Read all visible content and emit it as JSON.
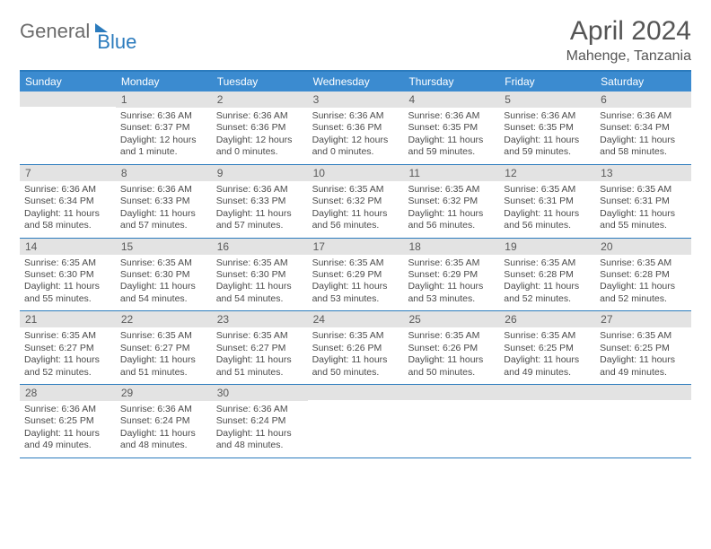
{
  "brand": {
    "general": "General",
    "blue": "Blue"
  },
  "title": "April 2024",
  "location": "Mahenge, Tanzania",
  "colors": {
    "header_bg": "#3b8bd0",
    "border": "#2b7bbd",
    "daynum_bg": "#e3e3e3",
    "text": "#4a4a4a",
    "title_text": "#555555"
  },
  "dow": [
    "Sunday",
    "Monday",
    "Tuesday",
    "Wednesday",
    "Thursday",
    "Friday",
    "Saturday"
  ],
  "weeks": [
    [
      {
        "n": "",
        "lines": []
      },
      {
        "n": "1",
        "lines": [
          "Sunrise: 6:36 AM",
          "Sunset: 6:37 PM",
          "Daylight: 12 hours",
          "and 1 minute."
        ]
      },
      {
        "n": "2",
        "lines": [
          "Sunrise: 6:36 AM",
          "Sunset: 6:36 PM",
          "Daylight: 12 hours",
          "and 0 minutes."
        ]
      },
      {
        "n": "3",
        "lines": [
          "Sunrise: 6:36 AM",
          "Sunset: 6:36 PM",
          "Daylight: 12 hours",
          "and 0 minutes."
        ]
      },
      {
        "n": "4",
        "lines": [
          "Sunrise: 6:36 AM",
          "Sunset: 6:35 PM",
          "Daylight: 11 hours",
          "and 59 minutes."
        ]
      },
      {
        "n": "5",
        "lines": [
          "Sunrise: 6:36 AM",
          "Sunset: 6:35 PM",
          "Daylight: 11 hours",
          "and 59 minutes."
        ]
      },
      {
        "n": "6",
        "lines": [
          "Sunrise: 6:36 AM",
          "Sunset: 6:34 PM",
          "Daylight: 11 hours",
          "and 58 minutes."
        ]
      }
    ],
    [
      {
        "n": "7",
        "lines": [
          "Sunrise: 6:36 AM",
          "Sunset: 6:34 PM",
          "Daylight: 11 hours",
          "and 58 minutes."
        ]
      },
      {
        "n": "8",
        "lines": [
          "Sunrise: 6:36 AM",
          "Sunset: 6:33 PM",
          "Daylight: 11 hours",
          "and 57 minutes."
        ]
      },
      {
        "n": "9",
        "lines": [
          "Sunrise: 6:36 AM",
          "Sunset: 6:33 PM",
          "Daylight: 11 hours",
          "and 57 minutes."
        ]
      },
      {
        "n": "10",
        "lines": [
          "Sunrise: 6:35 AM",
          "Sunset: 6:32 PM",
          "Daylight: 11 hours",
          "and 56 minutes."
        ]
      },
      {
        "n": "11",
        "lines": [
          "Sunrise: 6:35 AM",
          "Sunset: 6:32 PM",
          "Daylight: 11 hours",
          "and 56 minutes."
        ]
      },
      {
        "n": "12",
        "lines": [
          "Sunrise: 6:35 AM",
          "Sunset: 6:31 PM",
          "Daylight: 11 hours",
          "and 56 minutes."
        ]
      },
      {
        "n": "13",
        "lines": [
          "Sunrise: 6:35 AM",
          "Sunset: 6:31 PM",
          "Daylight: 11 hours",
          "and 55 minutes."
        ]
      }
    ],
    [
      {
        "n": "14",
        "lines": [
          "Sunrise: 6:35 AM",
          "Sunset: 6:30 PM",
          "Daylight: 11 hours",
          "and 55 minutes."
        ]
      },
      {
        "n": "15",
        "lines": [
          "Sunrise: 6:35 AM",
          "Sunset: 6:30 PM",
          "Daylight: 11 hours",
          "and 54 minutes."
        ]
      },
      {
        "n": "16",
        "lines": [
          "Sunrise: 6:35 AM",
          "Sunset: 6:30 PM",
          "Daylight: 11 hours",
          "and 54 minutes."
        ]
      },
      {
        "n": "17",
        "lines": [
          "Sunrise: 6:35 AM",
          "Sunset: 6:29 PM",
          "Daylight: 11 hours",
          "and 53 minutes."
        ]
      },
      {
        "n": "18",
        "lines": [
          "Sunrise: 6:35 AM",
          "Sunset: 6:29 PM",
          "Daylight: 11 hours",
          "and 53 minutes."
        ]
      },
      {
        "n": "19",
        "lines": [
          "Sunrise: 6:35 AM",
          "Sunset: 6:28 PM",
          "Daylight: 11 hours",
          "and 52 minutes."
        ]
      },
      {
        "n": "20",
        "lines": [
          "Sunrise: 6:35 AM",
          "Sunset: 6:28 PM",
          "Daylight: 11 hours",
          "and 52 minutes."
        ]
      }
    ],
    [
      {
        "n": "21",
        "lines": [
          "Sunrise: 6:35 AM",
          "Sunset: 6:27 PM",
          "Daylight: 11 hours",
          "and 52 minutes."
        ]
      },
      {
        "n": "22",
        "lines": [
          "Sunrise: 6:35 AM",
          "Sunset: 6:27 PM",
          "Daylight: 11 hours",
          "and 51 minutes."
        ]
      },
      {
        "n": "23",
        "lines": [
          "Sunrise: 6:35 AM",
          "Sunset: 6:27 PM",
          "Daylight: 11 hours",
          "and 51 minutes."
        ]
      },
      {
        "n": "24",
        "lines": [
          "Sunrise: 6:35 AM",
          "Sunset: 6:26 PM",
          "Daylight: 11 hours",
          "and 50 minutes."
        ]
      },
      {
        "n": "25",
        "lines": [
          "Sunrise: 6:35 AM",
          "Sunset: 6:26 PM",
          "Daylight: 11 hours",
          "and 50 minutes."
        ]
      },
      {
        "n": "26",
        "lines": [
          "Sunrise: 6:35 AM",
          "Sunset: 6:25 PM",
          "Daylight: 11 hours",
          "and 49 minutes."
        ]
      },
      {
        "n": "27",
        "lines": [
          "Sunrise: 6:35 AM",
          "Sunset: 6:25 PM",
          "Daylight: 11 hours",
          "and 49 minutes."
        ]
      }
    ],
    [
      {
        "n": "28",
        "lines": [
          "Sunrise: 6:36 AM",
          "Sunset: 6:25 PM",
          "Daylight: 11 hours",
          "and 49 minutes."
        ]
      },
      {
        "n": "29",
        "lines": [
          "Sunrise: 6:36 AM",
          "Sunset: 6:24 PM",
          "Daylight: 11 hours",
          "and 48 minutes."
        ]
      },
      {
        "n": "30",
        "lines": [
          "Sunrise: 6:36 AM",
          "Sunset: 6:24 PM",
          "Daylight: 11 hours",
          "and 48 minutes."
        ]
      },
      {
        "n": "",
        "lines": []
      },
      {
        "n": "",
        "lines": []
      },
      {
        "n": "",
        "lines": []
      },
      {
        "n": "",
        "lines": []
      }
    ]
  ]
}
